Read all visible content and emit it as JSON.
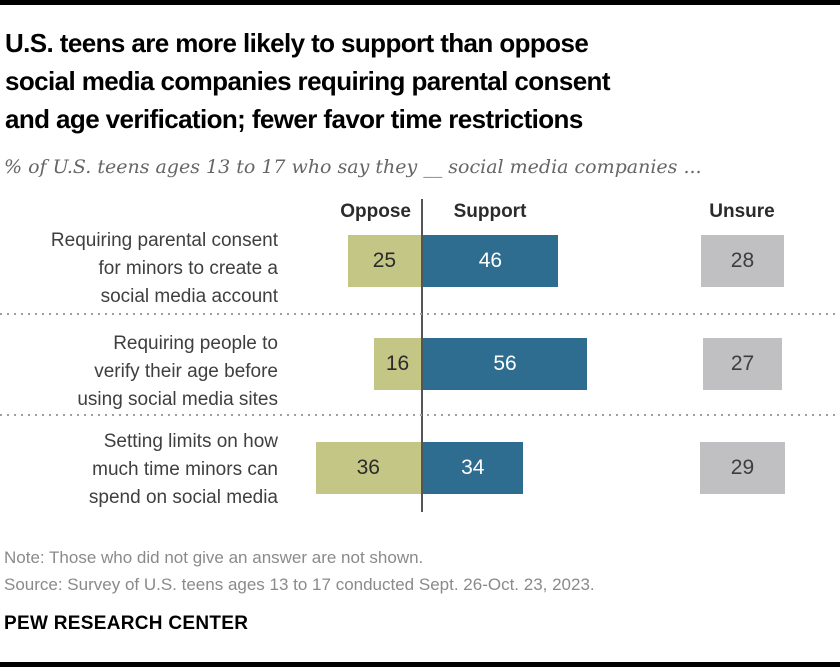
{
  "header": {
    "title_lines": [
      "U.S. teens are more likely to support than oppose",
      "social media companies requiring parental consent",
      "and age verification; fewer favor time restrictions"
    ],
    "subtitle": "% of U.S. teens ages 13 to 17 who say they __ social media companies ..."
  },
  "colors": {
    "oppose": "#c4c685",
    "support": "#2e6d90",
    "unsure": "#c0c0c2",
    "axis_line": "#555555",
    "title_text": "#000000",
    "subtitle_text": "#666666",
    "note_text": "#8a8a8a"
  },
  "chart_data": {
    "type": "bar",
    "orientation": "horizontal-diverging",
    "column_headers": {
      "oppose": "Oppose",
      "support": "Support",
      "unsure": "Unsure"
    },
    "categories": [
      "Requiring parental consent for minors to create a social media account",
      "Requiring people to verify their age before using social media sites",
      "Setting limits on how much time minors can spend on social media"
    ],
    "series": [
      {
        "name": "Oppose",
        "values": [
          25,
          16,
          36
        ]
      },
      {
        "name": "Support",
        "values": [
          46,
          56,
          34
        ]
      },
      {
        "name": "Unsure",
        "values": [
          28,
          27,
          29
        ]
      }
    ],
    "rows": [
      {
        "label_lines": [
          "Requiring parental consent",
          "for minors to create a",
          "social media account"
        ],
        "oppose": 25,
        "support": 46,
        "unsure": 28
      },
      {
        "label_lines": [
          "Requiring people to",
          "verify their age before",
          "using social media sites"
        ],
        "oppose": 16,
        "support": 56,
        "unsure": 27
      },
      {
        "label_lines": [
          "Setting limits on how",
          "much time minors can",
          "spend on social media"
        ],
        "oppose": 36,
        "support": 34,
        "unsure": 29
      }
    ],
    "value_unit": "percent",
    "grid": "off",
    "legend_position": "column-headers-top"
  },
  "footer": {
    "note": "Note: Those who did not give an answer are not shown.",
    "source": "Source: Survey of U.S. teens ages 13 to 17 conducted Sept. 26-Oct. 23, 2023.",
    "brand": "PEW RESEARCH CENTER"
  }
}
